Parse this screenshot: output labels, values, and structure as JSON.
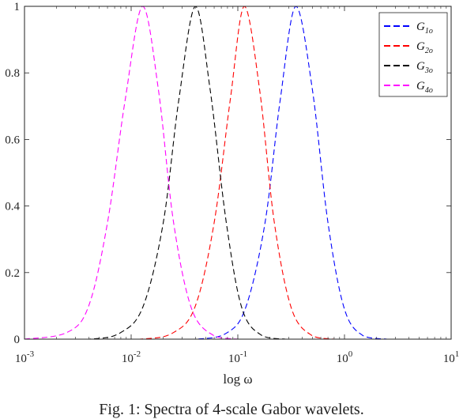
{
  "chart_data": {
    "type": "line",
    "title": "",
    "xlabel": "log ω",
    "ylabel": "",
    "xscale": "log",
    "xlim": [
      0.001,
      10
    ],
    "ylim": [
      0,
      1
    ],
    "x_ticks": [
      0.001,
      0.01,
      0.1,
      1,
      10
    ],
    "x_tick_labels": [
      {
        "base": "10",
        "exp": "-3"
      },
      {
        "base": "10",
        "exp": "-2"
      },
      {
        "base": "10",
        "exp": "-1"
      },
      {
        "base": "10",
        "exp": "0"
      },
      {
        "base": "10",
        "exp": "1"
      }
    ],
    "y_ticks": [
      0,
      0.2,
      0.4,
      0.6,
      0.8,
      1
    ],
    "y_tick_labels": [
      "0",
      "0.2",
      "0.4",
      "0.6",
      "0.8",
      "1"
    ],
    "grid": false,
    "legend_position": "top-right",
    "series": [
      {
        "name": "G_{1o}",
        "label_main": "G",
        "label_sub": "1o",
        "color": "#0000ff",
        "line_style": "dashed",
        "x": [
          0.01,
          0.04,
          0.08,
          0.12,
          0.18,
          0.25,
          0.35,
          0.5,
          0.7,
          1.0,
          1.5,
          2.5
        ],
        "y": [
          0.0,
          0.0,
          0.02,
          0.1,
          0.35,
          0.72,
          1.0,
          0.75,
          0.35,
          0.09,
          0.01,
          0.0
        ]
      },
      {
        "name": "G_{2o}",
        "label_main": "G",
        "label_sub": "2o",
        "color": "#ff0000",
        "line_style": "dashed",
        "x": [
          0.003,
          0.012,
          0.025,
          0.04,
          0.06,
          0.085,
          0.115,
          0.16,
          0.22,
          0.32,
          0.5,
          0.8
        ],
        "y": [
          0.0,
          0.0,
          0.02,
          0.1,
          0.35,
          0.72,
          1.0,
          0.75,
          0.35,
          0.09,
          0.01,
          0.0
        ]
      },
      {
        "name": "G_{3o}",
        "label_main": "G",
        "label_sub": "3o",
        "color": "#000000",
        "line_style": "dashed",
        "x": [
          0.001,
          0.004,
          0.008,
          0.013,
          0.02,
          0.028,
          0.04,
          0.055,
          0.078,
          0.11,
          0.17,
          0.28
        ],
        "y": [
          0.0,
          0.0,
          0.02,
          0.1,
          0.35,
          0.72,
          1.0,
          0.75,
          0.35,
          0.09,
          0.01,
          0.0
        ]
      },
      {
        "name": "G_{4o}",
        "label_main": "G",
        "label_sub": "4o",
        "color": "#ff00ff",
        "line_style": "dashed",
        "x": [
          0.001,
          0.0025,
          0.004,
          0.006,
          0.0088,
          0.0128,
          0.018,
          0.025,
          0.037,
          0.06,
          0.1
        ],
        "y": [
          0.0,
          0.02,
          0.1,
          0.35,
          0.72,
          1.0,
          0.75,
          0.35,
          0.09,
          0.01,
          0.0
        ]
      }
    ]
  },
  "caption": "Fig. 1: Spectra of 4-scale Gabor wavelets."
}
